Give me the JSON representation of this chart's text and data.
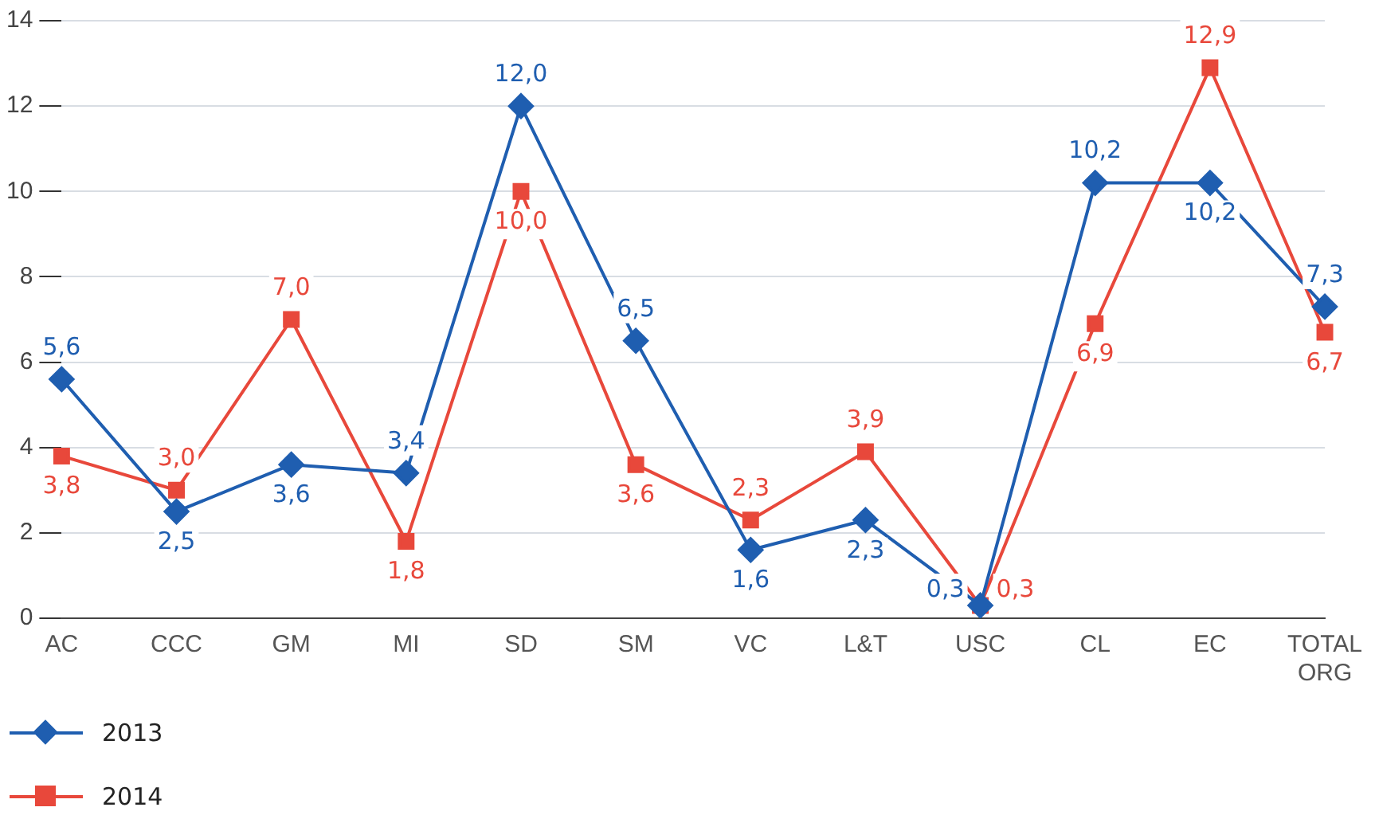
{
  "chart_data": {
    "type": "line",
    "categories": [
      "AC",
      "CCC",
      "GM",
      "MI",
      "SD",
      "SM",
      "VC",
      "L&T",
      "USC",
      "CL",
      "EC",
      "TOTAL ORG"
    ],
    "series": [
      {
        "name": "2013",
        "color": "#1f5eb0",
        "marker": "diamond",
        "values": [
          5.6,
          2.5,
          3.6,
          3.4,
          12.0,
          6.5,
          1.6,
          2.3,
          0.3,
          10.2,
          10.2,
          7.3
        ],
        "value_labels": [
          "5,6",
          "2,5",
          "3,6",
          "3,4",
          "12,0",
          "6,5",
          "1,6",
          "2,3",
          "0,3",
          "10,2",
          "10,2",
          "7,3"
        ]
      },
      {
        "name": "2014",
        "color": "#e8483b",
        "marker": "square",
        "values": [
          3.8,
          3.0,
          7.0,
          1.8,
          10.0,
          3.6,
          2.3,
          3.9,
          0.3,
          6.9,
          12.9,
          6.7
        ],
        "value_labels": [
          "3,8",
          "3,0",
          "7,0",
          "1,8",
          "10,0",
          "3,6",
          "2,3",
          "3,9",
          "0,3",
          "6,9",
          "12,9",
          "6,7"
        ]
      }
    ],
    "ylim": [
      0,
      14
    ],
    "yticks": [
      0,
      2,
      4,
      6,
      8,
      10,
      12,
      14
    ],
    "grid": "y",
    "legend": "bottom left"
  }
}
